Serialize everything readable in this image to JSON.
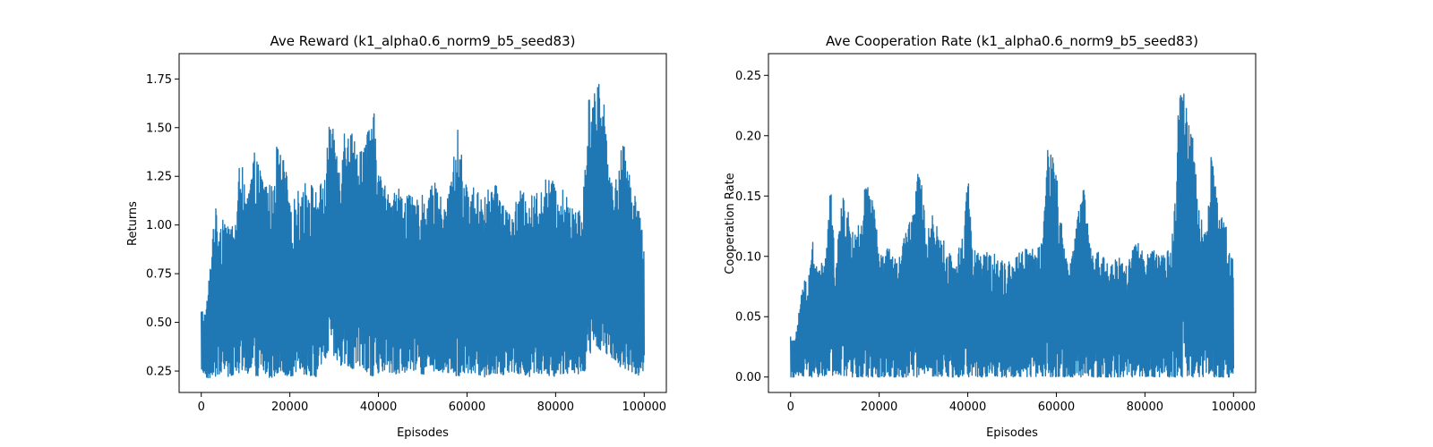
{
  "chart_data": [
    {
      "type": "line",
      "title": "Ave Reward (k1_alpha0.6_norm9_b5_seed83)",
      "xlabel": "Episodes",
      "ylabel": "Returns",
      "xlim": [
        -5000,
        105000
      ],
      "ylim": [
        0.14,
        1.88
      ],
      "xticks": [
        0,
        20000,
        40000,
        60000,
        80000,
        100000
      ],
      "xtick_labels": [
        "0",
        "20000",
        "40000",
        "60000",
        "80000",
        "100000"
      ],
      "yticks": [
        0.25,
        0.5,
        0.75,
        1.0,
        1.25,
        1.5,
        1.75
      ],
      "ytick_labels": [
        "0.25",
        "0.50",
        "0.75",
        "1.00",
        "1.25",
        "1.50",
        "1.75"
      ],
      "grid": false,
      "color": "#1f77b4",
      "series": [
        {
          "x": [
            0,
            1000,
            2000,
            3000,
            4000,
            5000,
            6000,
            8000,
            9000,
            10000,
            12000,
            14000,
            16000,
            17000,
            19000,
            20000,
            22000,
            24000,
            26000,
            28000,
            29000,
            31000,
            32000,
            33000,
            35000,
            37000,
            39000,
            40000,
            41000,
            43000,
            45000,
            47000,
            49000,
            51000,
            53000,
            55000,
            57000,
            58000,
            60000,
            62000,
            64000,
            66000,
            68000,
            70000,
            72000,
            74000,
            76000,
            78000,
            80000,
            82000,
            84000,
            86000,
            88000,
            89000,
            90000,
            91000,
            92000,
            94000,
            95000,
            97000,
            98000,
            99000,
            100000
          ],
          "upper": [
            0.57,
            0.55,
            0.79,
            1.12,
            1.0,
            1.08,
            0.99,
            1.05,
            1.48,
            1.1,
            1.37,
            1.25,
            1.2,
            1.41,
            1.32,
            1.1,
            1.18,
            1.24,
            1.18,
            1.25,
            1.58,
            1.34,
            1.46,
            1.6,
            1.4,
            1.45,
            1.58,
            1.3,
            1.22,
            1.18,
            1.2,
            1.15,
            1.13,
            1.18,
            1.22,
            1.08,
            1.35,
            1.51,
            1.18,
            1.2,
            1.16,
            1.22,
            1.15,
            1.05,
            1.18,
            1.14,
            1.18,
            1.25,
            1.22,
            1.17,
            1.13,
            1.06,
            1.85,
            1.68,
            1.76,
            1.63,
            1.32,
            1.22,
            1.45,
            1.25,
            1.2,
            1.04,
            0.98
          ],
          "lower": [
            0.26,
            0.22,
            0.21,
            0.22,
            0.23,
            0.25,
            0.22,
            0.24,
            0.22,
            0.24,
            0.22,
            0.23,
            0.21,
            0.24,
            0.23,
            0.22,
            0.24,
            0.23,
            0.22,
            0.3,
            0.36,
            0.28,
            0.26,
            0.27,
            0.25,
            0.24,
            0.22,
            0.23,
            0.25,
            0.24,
            0.23,
            0.26,
            0.24,
            0.23,
            0.25,
            0.24,
            0.23,
            0.22,
            0.24,
            0.23,
            0.22,
            0.24,
            0.23,
            0.25,
            0.23,
            0.22,
            0.24,
            0.23,
            0.22,
            0.24,
            0.23,
            0.24,
            0.28,
            0.38,
            0.36,
            0.35,
            0.33,
            0.3,
            0.25,
            0.24,
            0.22,
            0.23,
            0.26
          ]
        }
      ]
    },
    {
      "type": "line",
      "title": "Ave Cooperation Rate (k1_alpha0.6_norm9_b5_seed83)",
      "xlabel": "Episodes",
      "ylabel": "Cooperation Rate",
      "xlim": [
        -5000,
        105000
      ],
      "ylim": [
        -0.0128,
        0.268
      ],
      "xticks": [
        0,
        20000,
        40000,
        60000,
        80000,
        100000
      ],
      "xtick_labels": [
        "0",
        "20000",
        "40000",
        "60000",
        "80000",
        "100000"
      ],
      "yticks": [
        0.0,
        0.05,
        0.1,
        0.15,
        0.2,
        0.25
      ],
      "ytick_labels": [
        "0.00",
        "0.05",
        "0.10",
        "0.15",
        "0.20",
        "0.25"
      ],
      "grid": false,
      "color": "#1f77b4",
      "series": [
        {
          "x": [
            0,
            1000,
            2000,
            3000,
            4000,
            5000,
            6000,
            8000,
            9000,
            10000,
            12000,
            14000,
            16000,
            17000,
            19000,
            20000,
            22000,
            24000,
            26000,
            28000,
            29000,
            31000,
            32000,
            33000,
            35000,
            37000,
            39000,
            40000,
            41000,
            43000,
            45000,
            47000,
            49000,
            51000,
            53000,
            55000,
            57000,
            58000,
            60000,
            62000,
            64000,
            66000,
            68000,
            70000,
            72000,
            74000,
            76000,
            78000,
            80000,
            82000,
            84000,
            86000,
            88000,
            89000,
            90000,
            91000,
            92000,
            94000,
            95000,
            97000,
            98000,
            99000,
            100000
          ],
          "upper": [
            0.035,
            0.03,
            0.06,
            0.08,
            0.085,
            0.115,
            0.09,
            0.1,
            0.16,
            0.1,
            0.155,
            0.12,
            0.13,
            0.165,
            0.14,
            0.1,
            0.11,
            0.095,
            0.12,
            0.15,
            0.175,
            0.12,
            0.14,
            0.125,
            0.11,
            0.095,
            0.12,
            0.18,
            0.11,
            0.1,
            0.105,
            0.1,
            0.095,
            0.1,
            0.11,
            0.105,
            0.12,
            0.2,
            0.17,
            0.1,
            0.11,
            0.165,
            0.1,
            0.105,
            0.095,
            0.1,
            0.095,
            0.115,
            0.1,
            0.105,
            0.1,
            0.11,
            0.255,
            0.23,
            0.21,
            0.2,
            0.14,
            0.12,
            0.19,
            0.13,
            0.14,
            0.105,
            0.1
          ],
          "lower": [
            0.0,
            0.0,
            0.0,
            0.0,
            0.0,
            0.0,
            0.0,
            0.0,
            0.0,
            0.0,
            0.0,
            0.0,
            0.0,
            0.0,
            0.0,
            0.0,
            0.0,
            0.0,
            0.0,
            0.0,
            0.0,
            0.0,
            0.0,
            0.0,
            0.0,
            0.0,
            0.0,
            0.0,
            0.0,
            0.0,
            0.0,
            0.0,
            0.0,
            0.0,
            0.0,
            0.0,
            0.0,
            0.0,
            0.0,
            0.0,
            0.0,
            0.0,
            0.0,
            0.0,
            0.0,
            0.0,
            0.0,
            0.0,
            0.0,
            0.0,
            0.0,
            0.0,
            0.0,
            0.0,
            0.0,
            0.0,
            0.0,
            0.0,
            0.0,
            0.0,
            0.0,
            0.0,
            0.0
          ]
        }
      ]
    }
  ]
}
